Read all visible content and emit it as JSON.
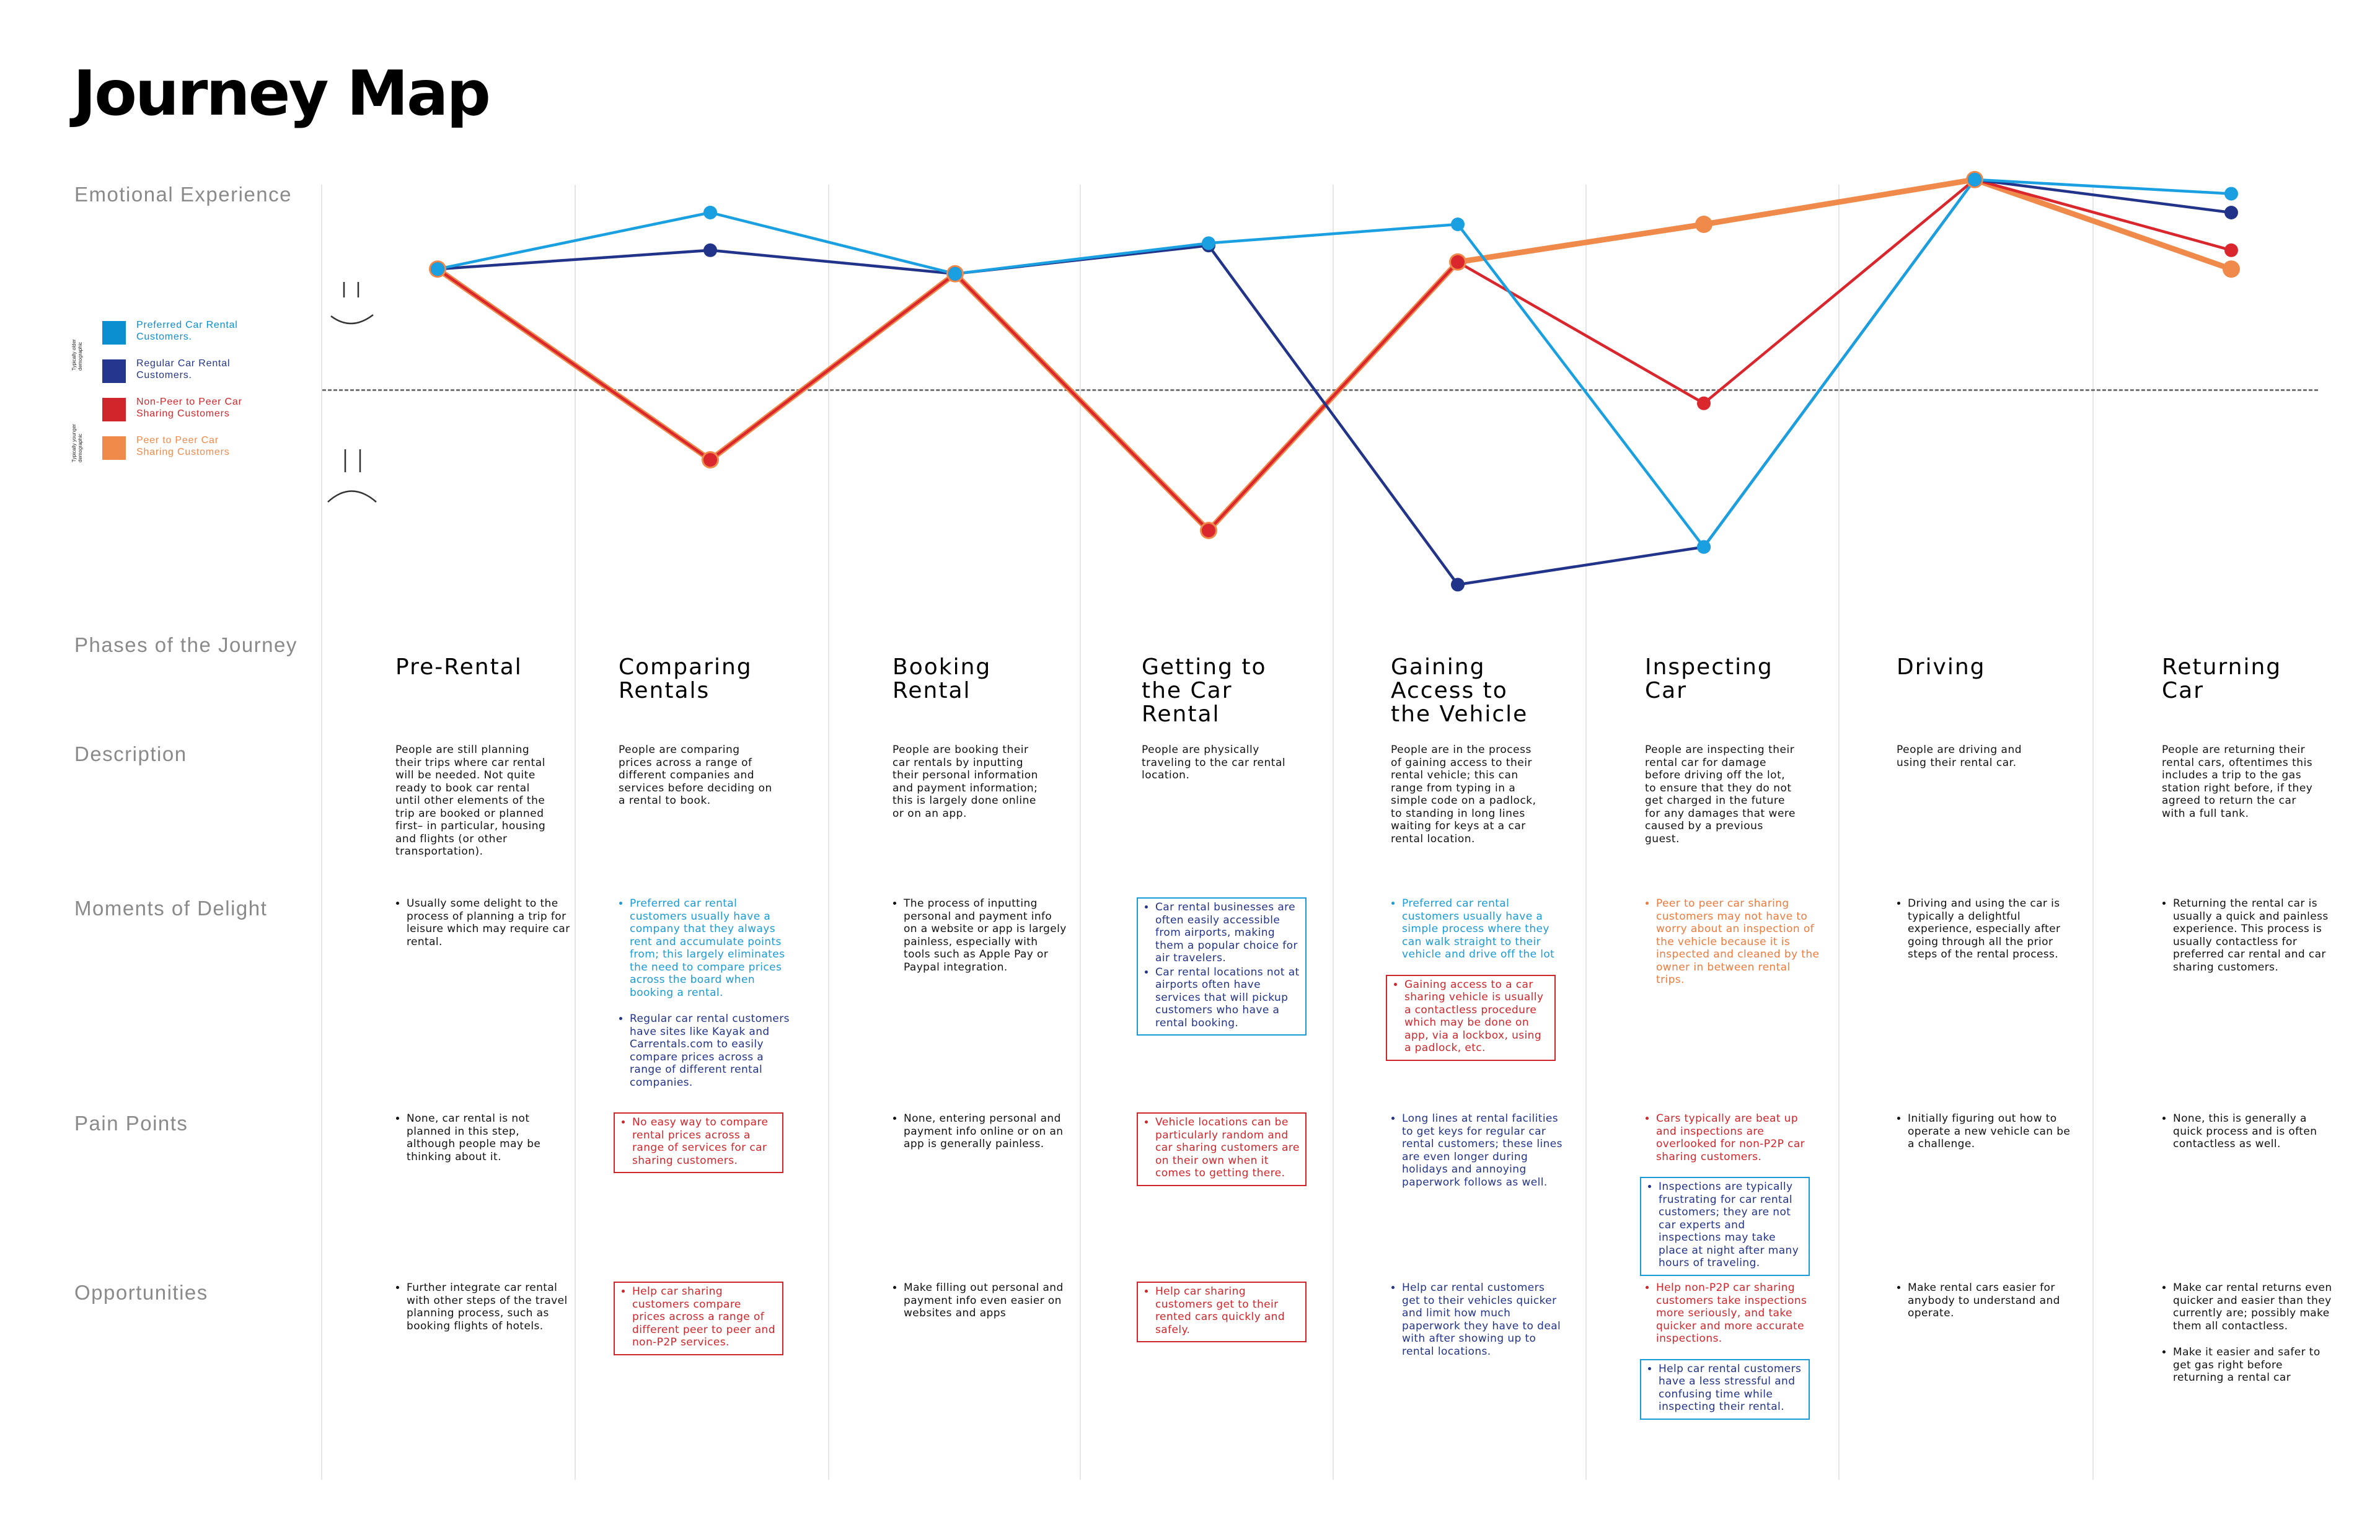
{
  "title": "Journey Map",
  "row_labels": {
    "emotional": "Emotional Experience",
    "phases": "Phases of the Journey",
    "description": "Description",
    "delight": "Moments of Delight",
    "pain": "Pain Points",
    "opportunities": "Opportunities"
  },
  "legend": {
    "group_older": "Typically older demographic",
    "group_younger": "Typically younger demographic",
    "items": [
      {
        "label_line1": "Preferred Car Rental",
        "label_line2": "Customers.",
        "color": "#0b8fd0"
      },
      {
        "label_line1": "Regular Car Rental",
        "label_line2": "Customers.",
        "color": "#24368d"
      },
      {
        "label_line1": "Non-Peer to Peer Car",
        "label_line2": "Sharing Customers",
        "color": "#d0262b"
      },
      {
        "label_line1": "Peer to Peer Car",
        "label_line2": "Sharing Customers",
        "color": "#f08a4b"
      }
    ]
  },
  "chart_data": {
    "type": "line",
    "categories": [
      "Pre-Rental",
      "Comparing Rentals",
      "Booking Rental",
      "Getting to the Car Rental",
      "Gaining Access to the Vehicle",
      "Inspecting Car",
      "Driving",
      "Returning Car"
    ],
    "ylim": [
      -1,
      1
    ],
    "neutral_line": 0,
    "series": [
      {
        "name": "Preferred Car Rental Customers.",
        "color": "#1aa0e0",
        "values": [
          0.51,
          0.75,
          0.49,
          0.62,
          0.7,
          -0.67,
          0.89,
          0.83
        ]
      },
      {
        "name": "Regular Car Rental Customers.",
        "color": "#22338a",
        "values": [
          0.51,
          0.59,
          0.49,
          0.61,
          -0.83,
          -0.67,
          0.89,
          0.75
        ]
      },
      {
        "name": "Non-Peer to Peer Car Sharing Customers",
        "color": "#d9272d",
        "values": [
          0.51,
          -0.3,
          0.49,
          -0.6,
          0.54,
          -0.06,
          0.89,
          0.59
        ]
      },
      {
        "name": "Peer to Peer Car Sharing Customers",
        "color": "#f08a4b",
        "values": [
          0.51,
          -0.3,
          0.49,
          -0.6,
          0.54,
          0.7,
          0.89,
          0.51
        ]
      }
    ]
  },
  "phases": [
    {
      "title": "Pre-Rental",
      "description": "People are still planning their trips where car rental will be needed. Not quite ready to book car rental until other elements of the trip are booked or planned first– in particular, housing and flights (or other transportation).",
      "delight": [
        {
          "color": "black",
          "boxed": false,
          "text": "Usually some delight to the process of planning a trip for leisure which may require car rental."
        }
      ],
      "pain": [
        {
          "color": "black",
          "boxed": false,
          "text": "None, car rental is not planned in this step, although people may be thinking about it."
        }
      ],
      "opportunities": [
        {
          "color": "black",
          "boxed": false,
          "text": "Further integrate car rental with other steps of the travel planning process, such as booking flights of hotels."
        }
      ]
    },
    {
      "title": "Comparing Rentals",
      "description": "People are comparing prices across a range of different companies and services before deciding on a rental to book.",
      "delight": [
        {
          "color": "blue",
          "boxed": false,
          "text": "Preferred car rental customers usually have a company that they always rent and accumulate points from; this largely eliminates the need to compare prices across the board when booking a rental."
        },
        {
          "color": "navy",
          "boxed": false,
          "text": "Regular car rental customers have sites like Kayak and Carrentals.com to easily compare prices across a range of different rental companies."
        }
      ],
      "pain": [
        {
          "color": "red",
          "boxed": true,
          "text": "No easy way to compare rental prices across a range of services for car sharing customers."
        }
      ],
      "opportunities": [
        {
          "color": "red",
          "boxed": true,
          "text": "Help car sharing customers compare prices across a range of different peer to peer and non-P2P services."
        }
      ]
    },
    {
      "title": "Booking Rental",
      "description": "People are booking their car rentals by inputting their personal information and payment information; this is largely done online or on an app.",
      "delight": [
        {
          "color": "black",
          "boxed": false,
          "text": "The process of inputting personal and payment info on a website or app is largely painless, especially with tools such as Apple Pay or Paypal integration."
        }
      ],
      "pain": [
        {
          "color": "black",
          "boxed": false,
          "text": "None, entering personal and payment info online or on an app is generally painless."
        }
      ],
      "opportunities": [
        {
          "color": "black",
          "boxed": false,
          "text": "Make filling out personal and payment info even easier on websites and apps"
        }
      ]
    },
    {
      "title": "Getting to the Car Rental",
      "description": "People are physically traveling to the car rental location.",
      "delight": [
        {
          "color": "navy",
          "boxed": true,
          "box_color": "blue",
          "items": [
            "Car rental businesses are often easily accessible from airports, making them a popular choice for air travelers.",
            "Car rental locations not at airports often have services that will pickup customers who have a rental booking."
          ]
        }
      ],
      "pain": [
        {
          "color": "red",
          "boxed": true,
          "text": "Vehicle locations can be particularly random and car sharing customers are on their own when it comes to getting there."
        }
      ],
      "opportunities": [
        {
          "color": "red",
          "boxed": true,
          "text": "Help car sharing customers get to their rented cars quickly and safely."
        }
      ]
    },
    {
      "title": "Gaining Access to the Vehicle",
      "description": "People are in the process of gaining access to their rental vehicle; this can range from typing in a simple code on a padlock, to standing in long lines waiting for keys at a car rental location.",
      "delight": [
        {
          "color": "blue",
          "boxed": false,
          "text": "Preferred car rental customers usually have a simple process where they can walk straight to their vehicle and drive off the lot"
        },
        {
          "color": "red",
          "boxed": true,
          "text": "Gaining access to a car sharing vehicle is usually a contactless procedure which may be done on app, via a lockbox, using a padlock, etc."
        }
      ],
      "pain": [
        {
          "color": "navy",
          "boxed": false,
          "text": "Long lines at rental facilities to get keys for regular car rental customers; these lines are even longer during holidays and annoying paperwork follows as well."
        }
      ],
      "opportunities": [
        {
          "color": "navy",
          "boxed": false,
          "text": "Help car rental customers get to their vehicles quicker and limit how much paperwork they have to deal with after showing up to rental locations."
        }
      ]
    },
    {
      "title": "Inspecting Car",
      "description": "People are inspecting their rental car for damage before driving off the lot, to ensure that they do not get charged in the future for any damages that were caused by a previous guest.",
      "delight": [
        {
          "color": "orange",
          "boxed": false,
          "text": "Peer to peer car sharing customers may not have to worry about an inspection of the vehicle because it is inspected and cleaned by the owner in between rental trips."
        }
      ],
      "pain": [
        {
          "color": "red",
          "boxed": false,
          "text": "Cars typically are beat up and inspections are overlooked for non-P2P car sharing customers."
        },
        {
          "color": "navy",
          "boxed": true,
          "box_color": "blue",
          "text": "Inspections are typically frustrating for car rental customers; they are not car experts and inspections may take place at night after many hours of traveling."
        }
      ],
      "opportunities": [
        {
          "color": "red",
          "boxed": false,
          "text": "Help non-P2P car sharing customers take inspections more seriously, and take quicker and more accurate inspections."
        },
        {
          "color": "navy",
          "boxed": true,
          "box_color": "blue",
          "text": "Help car rental customers have a less stressful and confusing time while inspecting their rental."
        }
      ]
    },
    {
      "title": "Driving",
      "description": "People are driving and using their rental car.",
      "delight": [
        {
          "color": "black",
          "boxed": false,
          "text": "Driving and using the car is typically a delightful experience, especially after going through all the prior steps of the rental process."
        }
      ],
      "pain": [
        {
          "color": "black",
          "boxed": false,
          "text": "Initially figuring out how to operate a new vehicle can be a challenge."
        }
      ],
      "opportunities": [
        {
          "color": "black",
          "boxed": false,
          "text": "Make rental cars easier for anybody to understand and operate."
        }
      ]
    },
    {
      "title": "Returning Car",
      "description": "People are returning their rental cars, oftentimes this includes a trip to the gas station right before, if they agreed to return the car with a full tank.",
      "delight": [
        {
          "color": "black",
          "boxed": false,
          "text": "Returning the rental car is usually a quick and painless experience. This process is usually contactless for preferred car rental and car sharing customers."
        }
      ],
      "pain": [
        {
          "color": "black",
          "boxed": false,
          "text": "None, this is generally a quick process and is often contactless as well."
        }
      ],
      "opportunities": [
        {
          "color": "black",
          "boxed": false,
          "text": "Make car rental returns even quicker and easier than they currently are; possibly make them all contactless."
        },
        {
          "color": "black",
          "boxed": false,
          "text": "Make it easier and safer to get gas right before returning a rental car"
        }
      ]
    }
  ]
}
